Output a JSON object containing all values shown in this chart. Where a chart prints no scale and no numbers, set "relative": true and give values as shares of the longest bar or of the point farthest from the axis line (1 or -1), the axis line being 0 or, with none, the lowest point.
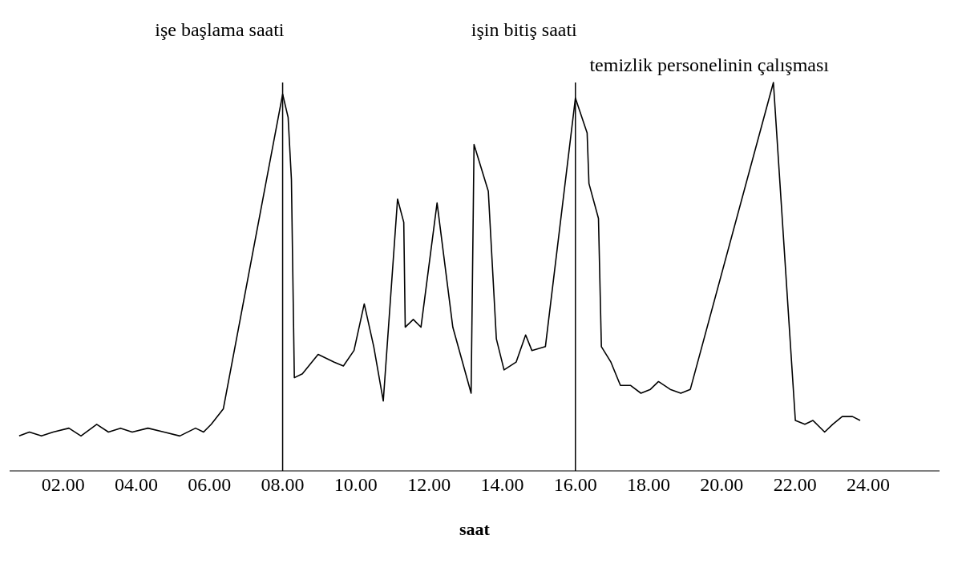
{
  "chart_data": {
    "type": "line",
    "xlabel": "saat",
    "relative": true,
    "color": "#000000",
    "x": [
      0.8,
      1.08,
      1.41,
      1.73,
      2.16,
      2.49,
      2.92,
      3.24,
      3.57,
      3.89,
      4.32,
      4.76,
      5.19,
      5.62,
      5.84,
      6.05,
      6.38,
      8.0,
      8.15,
      8.24,
      8.32,
      8.54,
      8.97,
      9.41,
      9.66,
      9.95,
      10.23,
      10.49,
      10.75,
      11.14,
      11.31,
      11.35,
      11.57,
      11.78,
      12.22,
      12.65,
      13.15,
      13.23,
      13.62,
      13.84,
      14.05,
      14.38,
      14.64,
      14.81,
      15.18,
      16.0,
      16.32,
      16.37,
      16.63,
      16.71,
      16.97,
      17.23,
      17.51,
      17.79,
      18.05,
      18.27,
      18.59,
      18.88,
      19.14,
      21.41,
      22.01,
      22.27,
      22.49,
      22.81,
      23.03,
      23.29,
      23.57,
      23.78
    ],
    "values": [
      0.09,
      0.1,
      0.09,
      0.1,
      0.11,
      0.09,
      0.12,
      0.1,
      0.11,
      0.1,
      0.11,
      0.1,
      0.09,
      0.11,
      0.1,
      0.12,
      0.16,
      0.97,
      0.91,
      0.75,
      0.24,
      0.25,
      0.3,
      0.28,
      0.27,
      0.31,
      0.43,
      0.32,
      0.18,
      0.7,
      0.64,
      0.37,
      0.39,
      0.37,
      0.69,
      0.37,
      0.2,
      0.84,
      0.72,
      0.34,
      0.26,
      0.28,
      0.35,
      0.31,
      0.32,
      0.96,
      0.87,
      0.74,
      0.65,
      0.32,
      0.28,
      0.22,
      0.22,
      0.2,
      0.21,
      0.23,
      0.21,
      0.2,
      0.21,
      1.0,
      0.13,
      0.12,
      0.13,
      0.1,
      0.12,
      0.14,
      0.14,
      0.13
    ],
    "xlim": [
      0.54,
      25.95
    ],
    "xticks": [
      {
        "value": 2,
        "label": "02.00"
      },
      {
        "value": 4,
        "label": "04.00"
      },
      {
        "value": 6,
        "label": "06.00"
      },
      {
        "value": 8,
        "label": "08.00"
      },
      {
        "value": 10,
        "label": "10.00"
      },
      {
        "value": 12,
        "label": "12.00"
      },
      {
        "value": 14,
        "label": "14.00"
      },
      {
        "value": 16,
        "label": "16.00"
      },
      {
        "value": 18,
        "label": "18.00"
      },
      {
        "value": 20,
        "label": "20.00"
      },
      {
        "value": 22,
        "label": "22.00"
      },
      {
        "value": 24,
        "label": "24.00"
      }
    ],
    "ref_lines": [
      {
        "axis": "x",
        "value": 8,
        "label": "işe başlama saati"
      },
      {
        "axis": "x",
        "value": 16,
        "label": "işin bitiş saati"
      }
    ],
    "annotations": [
      {
        "text": "temizlik personelinin çalışması",
        "x": 21.41,
        "y": 1.0
      }
    ],
    "grid": false,
    "legend": false,
    "marker": "none",
    "line_style": "solid"
  }
}
